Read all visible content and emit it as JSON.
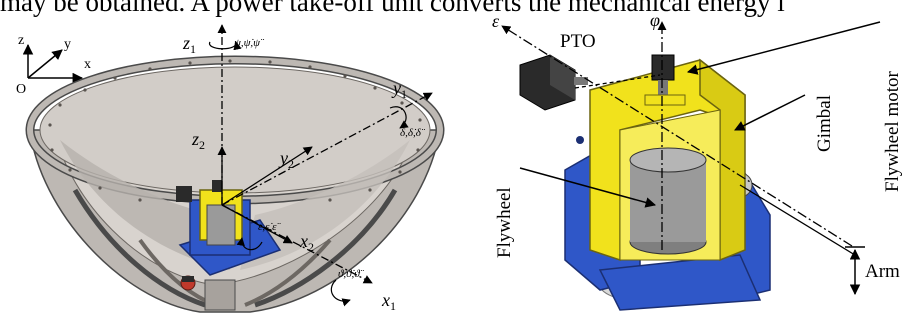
{
  "header_text": "may be obtained. A power take-off unit converts the mechanical energy i",
  "left_figure": {
    "frame_axes": {
      "z": "z",
      "y": "y",
      "x": "x",
      "origin": "O"
    },
    "axes": {
      "z1": "z",
      "z1_sub": "1",
      "y1": "y",
      "y1_sub": "1",
      "z2": "z",
      "z2_sub": "2",
      "y2": "y",
      "y2_sub": "2",
      "x2": "x",
      "x2_sub": "2",
      "x1": "x",
      "x1_sub": "1"
    },
    "rotations": {
      "psi": "ψ,ψ̇,ψ̈",
      "delta": "δ,δ̇,δ̈",
      "epsilon": "ε,ε̇,ε̈",
      "theta": "ϑ,ϑ̇,ϑ̈"
    }
  },
  "right_figure": {
    "axes": {
      "epsilon": "ε",
      "phi": "φ"
    },
    "labels": {
      "pto": "PTO",
      "flywheel_motor": "Flywheel motor",
      "gimbal": "Gimbal",
      "flywheel": "Flywheel",
      "arm": "Arm"
    }
  },
  "colors": {
    "hull": "#cfcac5",
    "hull_dark": "#8f8a85",
    "frame_blue": "#2f57c8",
    "gimbal_yellow": "#f1e21c",
    "flywheel_gray": "#9a9a9a",
    "motor_black": "#2a2a2a"
  }
}
